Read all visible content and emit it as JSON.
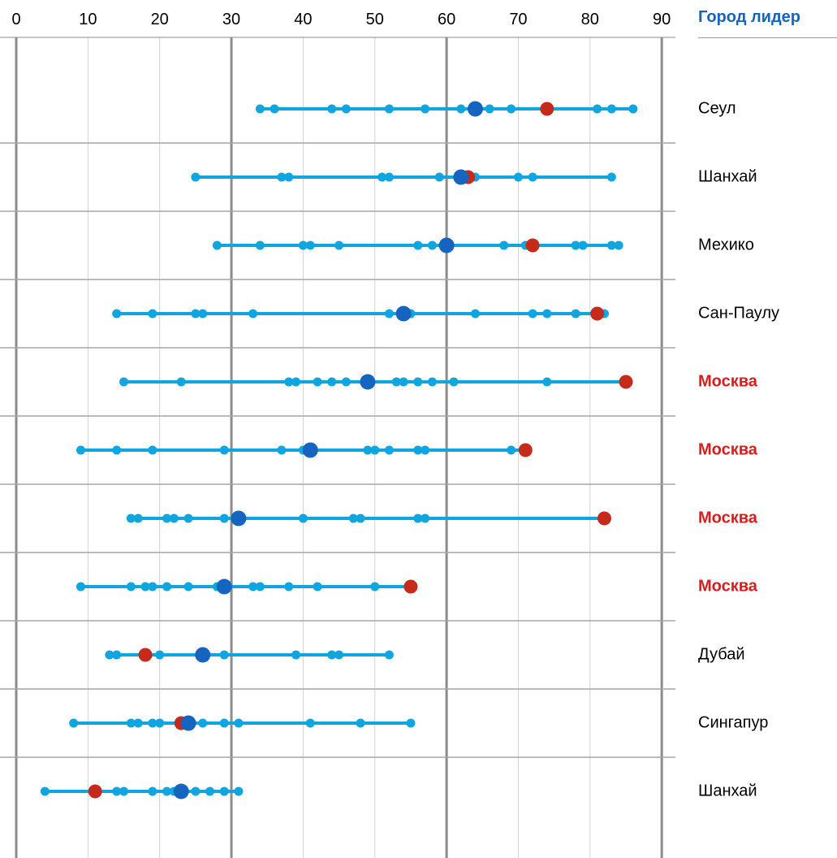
{
  "chart_data": {
    "type": "scatter",
    "xlim": [
      0,
      90
    ],
    "x_ticks": [
      "0",
      "10",
      "20",
      "30",
      "40",
      "50",
      "60",
      "70",
      "80",
      "90"
    ],
    "leader_header": "Город лидер",
    "colors": {
      "line": "#0ea5e0",
      "dot": "#0ea5e0",
      "mean": "#1565c0",
      "moscow": "#c62a1a",
      "leader_highlight": "#e01a1a",
      "header": "#1565c0"
    },
    "rows": [
      {
        "leader": "Сеул",
        "highlight": false,
        "values": [
          34,
          36,
          44,
          46,
          52,
          57,
          62,
          66,
          69,
          81,
          83,
          86
        ],
        "mean": 64,
        "moscow": 74
      },
      {
        "leader": "Шанхай",
        "highlight": false,
        "values": [
          25,
          37,
          38,
          51,
          52,
          59,
          64,
          70,
          72,
          83
        ],
        "mean": 62,
        "moscow": 63
      },
      {
        "leader": "Мехико",
        "highlight": false,
        "values": [
          28,
          34,
          40,
          41,
          45,
          56,
          58,
          68,
          71,
          78,
          79,
          83,
          84
        ],
        "mean": 60,
        "moscow": 72
      },
      {
        "leader": "Сан-Паулу",
        "highlight": false,
        "values": [
          14,
          19,
          25,
          26,
          33,
          52,
          55,
          64,
          72,
          74,
          78,
          82
        ],
        "mean": 54,
        "moscow": 81
      },
      {
        "leader": "Москва",
        "highlight": true,
        "values": [
          15,
          23,
          38,
          39,
          42,
          44,
          46,
          53,
          54,
          56,
          58,
          61,
          74
        ],
        "mean": 49,
        "moscow": 85
      },
      {
        "leader": "Москва",
        "highlight": true,
        "values": [
          9,
          14,
          19,
          29,
          37,
          40,
          49,
          50,
          52,
          56,
          57,
          69
        ],
        "mean": 41,
        "moscow": 71
      },
      {
        "leader": "Москва",
        "highlight": true,
        "values": [
          16,
          17,
          21,
          22,
          24,
          29,
          40,
          47,
          48,
          56,
          57
        ],
        "mean": 31,
        "moscow": 82
      },
      {
        "leader": "Москва",
        "highlight": true,
        "values": [
          9,
          16,
          18,
          19,
          21,
          24,
          28,
          33,
          34,
          38,
          42,
          50
        ],
        "mean": 29,
        "moscow": 55
      },
      {
        "leader": "Дубай",
        "highlight": false,
        "values": [
          13,
          14,
          20,
          29,
          39,
          44,
          45,
          52
        ],
        "mean": 26,
        "moscow": 18
      },
      {
        "leader": "Сингапур",
        "highlight": false,
        "values": [
          8,
          16,
          17,
          19,
          20,
          26,
          29,
          31,
          41,
          48,
          55
        ],
        "mean": 24,
        "moscow": 23
      },
      {
        "leader": "Шанхай",
        "highlight": false,
        "values": [
          4,
          14,
          15,
          19,
          21,
          22,
          25,
          27,
          29,
          31
        ],
        "mean": 23,
        "moscow": 11
      }
    ]
  }
}
